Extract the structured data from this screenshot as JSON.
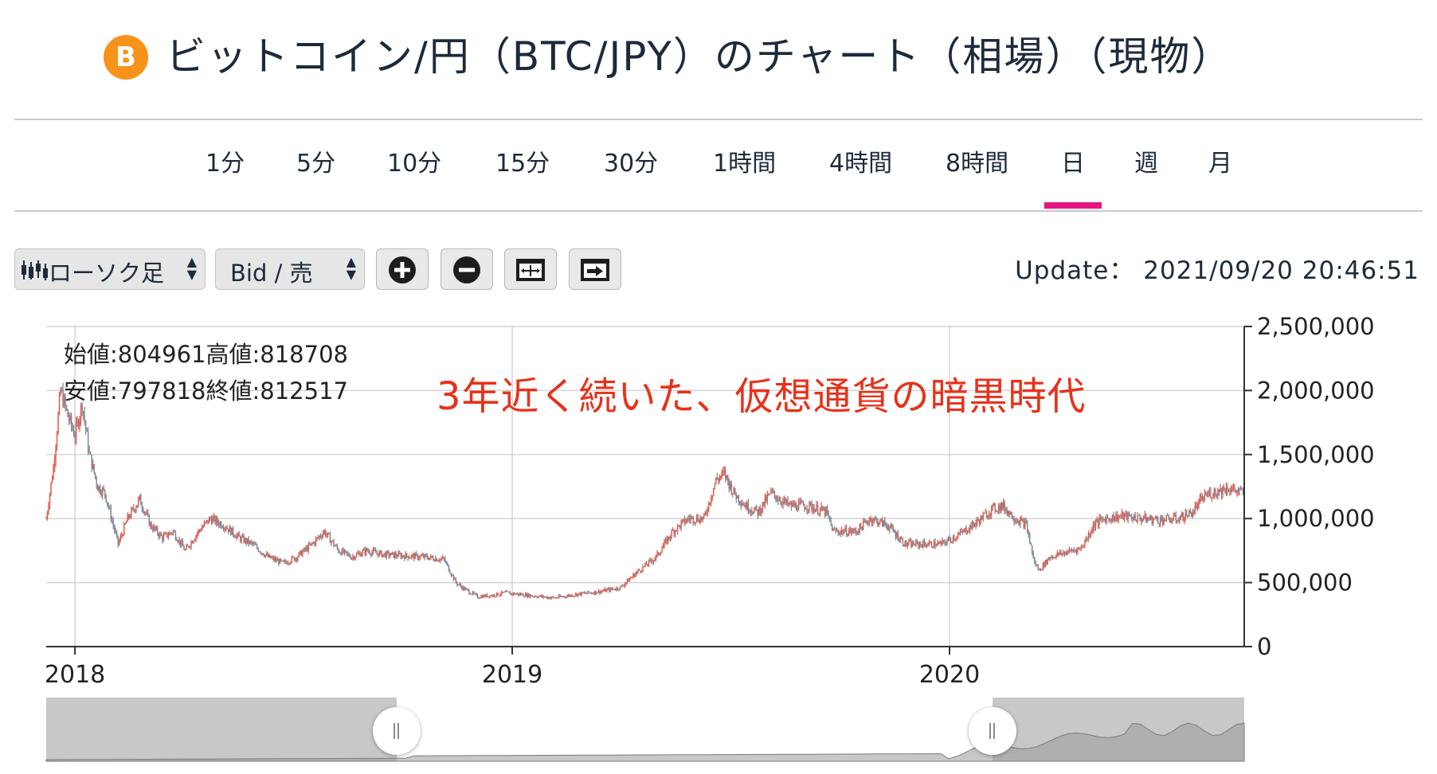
{
  "header": {
    "coin_icon": "bitcoin-icon",
    "coin_symbol": "B",
    "title": "ビットコイン/円（BTC/JPY）のチャート（相場）（現物）"
  },
  "tabs": [
    {
      "label": "1分"
    },
    {
      "label": "5分"
    },
    {
      "label": "10分"
    },
    {
      "label": "15分"
    },
    {
      "label": "30分"
    },
    {
      "label": "1時間"
    },
    {
      "label": "4時間"
    },
    {
      "label": "8時間"
    },
    {
      "label": "日",
      "active": true
    },
    {
      "label": "週"
    },
    {
      "label": "月"
    }
  ],
  "toolbar": {
    "chart_type": "ローソク足",
    "price_type": "Bid / 売",
    "buttons": [
      "zoom-in-icon",
      "zoom-out-icon",
      "fit-icon",
      "scroll-end-icon"
    ],
    "update_label": "Update：",
    "update_time": "2021/09/20 20:46:51"
  },
  "ohlc": {
    "open_label": "始値:",
    "open": "804961",
    "high_label": "高値:",
    "high": "818708",
    "low_label": "安値:",
    "low": "797818",
    "close_label": "終値:",
    "close": "812517"
  },
  "annotation": "3年近く続いた、仮想通貨の暗黒時代",
  "colors": {
    "accent": "#e6157f",
    "up": "#e05a4a",
    "down": "#7b8797",
    "annotation": "#e8311a",
    "coin": "#f7931a"
  },
  "chart_data": {
    "type": "candlestick",
    "title": "",
    "xlabel": "",
    "ylabel": "",
    "ylim": [
      0,
      2500000
    ],
    "yticks": [
      0,
      500000,
      1000000,
      1500000,
      2000000,
      2500000
    ],
    "ytick_labels": [
      "0",
      "500,000",
      "1,000,000",
      "1,500,000",
      "2,000,000",
      "2,500,000"
    ],
    "xticks": [
      "2018-01-01",
      "2019-01-01",
      "2020-01-01"
    ],
    "xtick_labels": [
      "2018",
      "2019",
      "2020"
    ],
    "xlim": [
      "2017-12-08",
      "2020-09-03"
    ],
    "grid": true,
    "series": [
      {
        "x": [
          "2017-12-08",
          "2017-12-14",
          "2017-12-20",
          "2017-12-26",
          "2018-01-01",
          "2018-01-07",
          "2018-01-13",
          "2018-01-20",
          "2018-01-26",
          "2018-02-06",
          "2018-02-14",
          "2018-02-24",
          "2018-03-05",
          "2018-03-15",
          "2018-03-24",
          "2018-04-03",
          "2018-04-14",
          "2018-04-24",
          "2018-05-05",
          "2018-05-18",
          "2018-05-29",
          "2018-06-11",
          "2018-06-24",
          "2018-07-05",
          "2018-07-18",
          "2018-07-28",
          "2018-08-09",
          "2018-08-20",
          "2018-09-01",
          "2018-09-15",
          "2018-10-01",
          "2018-10-20",
          "2018-11-05",
          "2018-11-15",
          "2018-11-22",
          "2018-12-03",
          "2018-12-15",
          "2018-12-26",
          "2019-01-15",
          "2019-02-05",
          "2019-02-25",
          "2019-03-15",
          "2019-04-01",
          "2019-04-15",
          "2019-05-01",
          "2019-05-15",
          "2019-05-28",
          "2019-06-10",
          "2019-06-20",
          "2019-06-27",
          "2019-07-05",
          "2019-07-15",
          "2019-07-25",
          "2019-08-05",
          "2019-08-20",
          "2019-09-05",
          "2019-09-20",
          "2019-09-26",
          "2019-10-15",
          "2019-10-27",
          "2019-11-10",
          "2019-11-25",
          "2019-12-10",
          "2019-12-25",
          "2020-01-10",
          "2020-01-25",
          "2020-02-05",
          "2020-02-14",
          "2020-02-25",
          "2020-03-05",
          "2020-03-12",
          "2020-03-16",
          "2020-03-25",
          "2020-04-05",
          "2020-04-20",
          "2020-05-01",
          "2020-05-10",
          "2020-05-25",
          "2020-06-10",
          "2020-06-25",
          "2020-07-10",
          "2020-07-22",
          "2020-08-01",
          "2020-08-20",
          "2020-09-01"
        ],
        "values": [
          1000000,
          1400000,
          2000000,
          1800000,
          1650000,
          1900000,
          1500000,
          1250000,
          1200000,
          800000,
          1000000,
          1150000,
          950000,
          850000,
          900000,
          750000,
          900000,
          1000000,
          950000,
          850000,
          800000,
          700000,
          650000,
          700000,
          800000,
          900000,
          750000,
          700000,
          750000,
          720000,
          710000,
          700000,
          680000,
          500000,
          450000,
          390000,
          400000,
          420000,
          400000,
          380000,
          410000,
          430000,
          460000,
          580000,
          700000,
          900000,
          1000000,
          1000000,
          1300000,
          1350000,
          1200000,
          1100000,
          1050000,
          1200000,
          1100000,
          1100000,
          1050000,
          900000,
          900000,
          1000000,
          950000,
          800000,
          800000,
          800000,
          880000,
          980000,
          1070000,
          1100000,
          1000000,
          950000,
          650000,
          600000,
          700000,
          730000,
          770000,
          960000,
          1000000,
          1020000,
          1000000,
          990000,
          1000000,
          1050000,
          1180000,
          1240000,
          1200000
        ]
      }
    ]
  }
}
